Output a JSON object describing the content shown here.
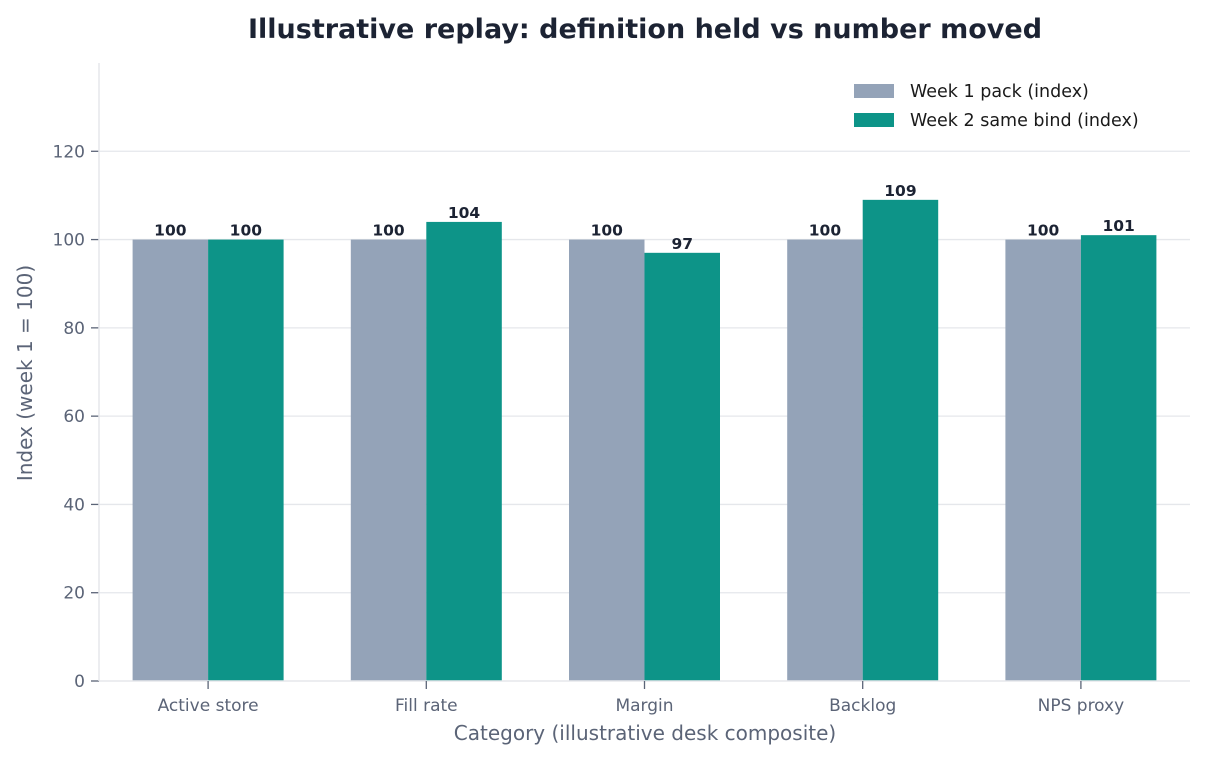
{
  "chart_data": {
    "type": "bar",
    "title": "Illustrative replay: definition held vs number moved",
    "xlabel": "Category (illustrative desk composite)",
    "ylabel": "Index (week 1 = 100)",
    "categories": [
      "Active store",
      "Fill rate",
      "Margin",
      "Backlog",
      "NPS proxy"
    ],
    "series": [
      {
        "name": "Week 1 pack (index)",
        "values": [
          100,
          100,
          100,
          100,
          100
        ],
        "color": "#94a3b8"
      },
      {
        "name": "Week 2 same bind (index)",
        "values": [
          100,
          104,
          97,
          109,
          101
        ],
        "color": "#0d9488"
      }
    ],
    "ylim": [
      0,
      140
    ],
    "yticks": [
      0,
      20,
      40,
      60,
      80,
      100,
      120
    ],
    "grid": true,
    "legend": "top-right"
  }
}
